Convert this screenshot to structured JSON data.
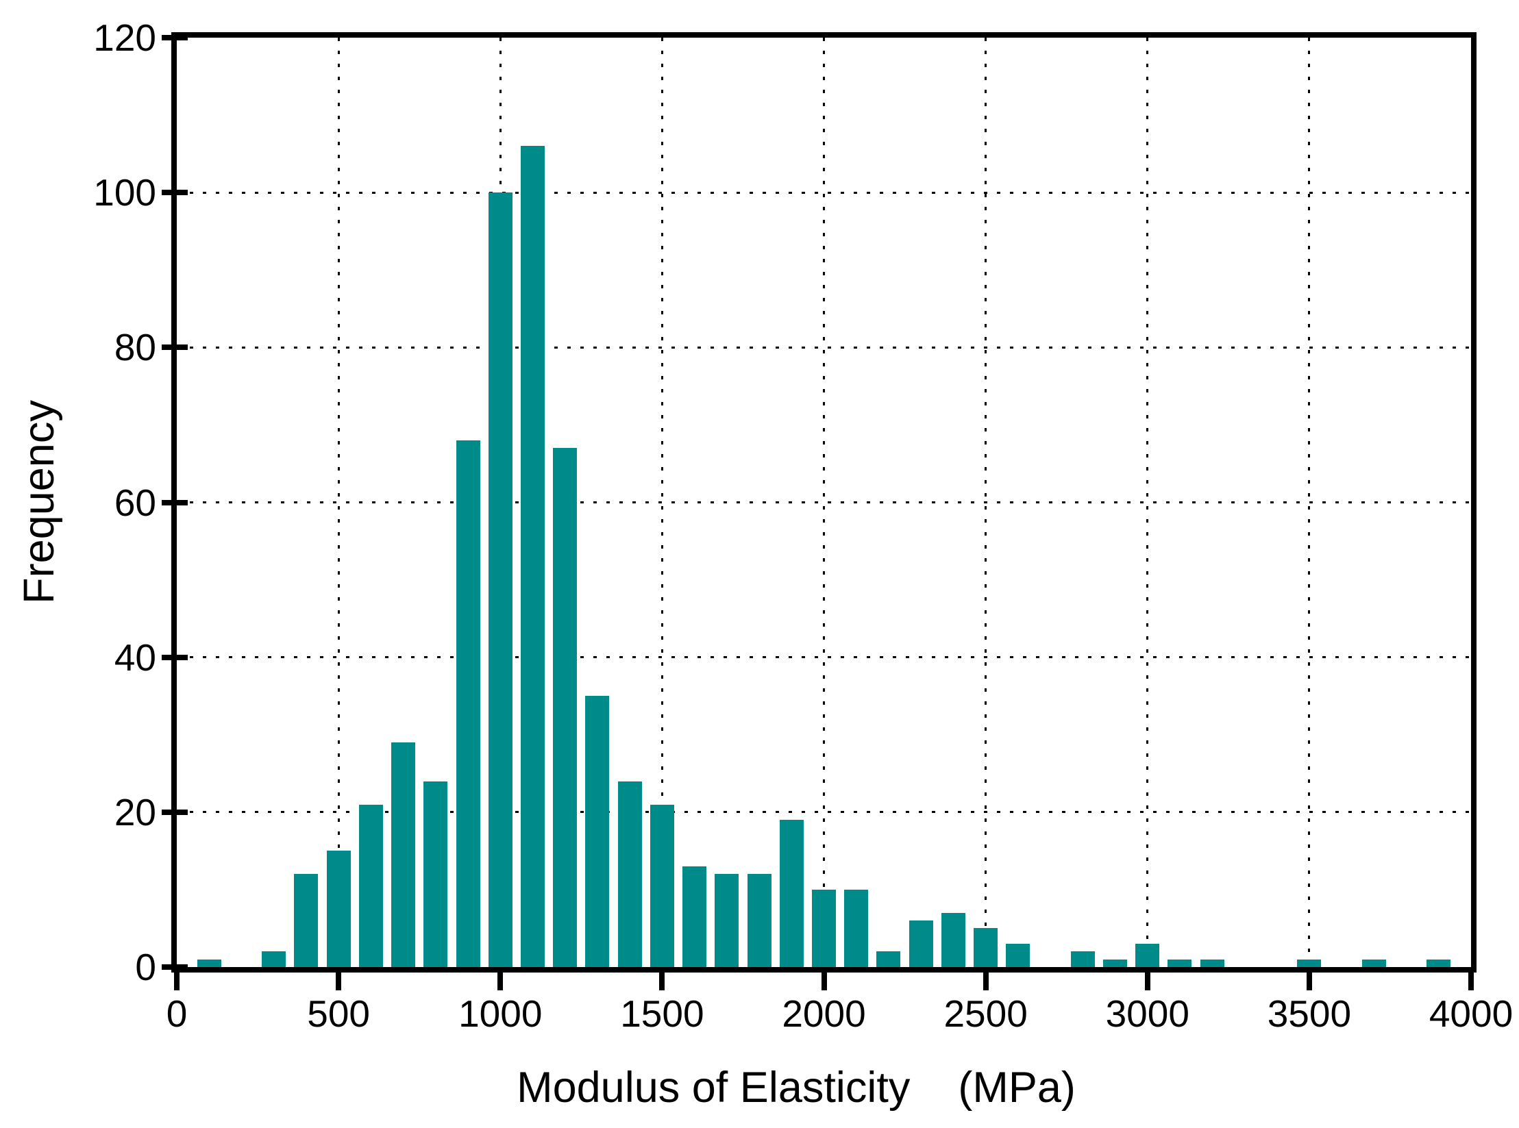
{
  "figure": {
    "background": "#ffffff",
    "axis_color": "#000000"
  },
  "chart_data": {
    "type": "bar",
    "title": "",
    "xlabel": "Modulus of Elasticity    (MPa)",
    "ylabel": "Frequency",
    "xlim": [
      0,
      4000
    ],
    "ylim": [
      0,
      120
    ],
    "x_ticks": [
      0,
      500,
      1000,
      1500,
      2000,
      2500,
      3000,
      3500,
      4000
    ],
    "y_ticks": [
      0,
      20,
      40,
      60,
      80,
      100,
      120
    ],
    "grid": {
      "style": "dotted",
      "x_interval": 500,
      "y_interval": 20,
      "on": true
    },
    "legend": "none",
    "bar_color": "#008B8B",
    "bin_width_mpa": 100,
    "bars": [
      {
        "x": 100,
        "frequency": 1
      },
      {
        "x": 300,
        "frequency": 2
      },
      {
        "x": 400,
        "frequency": 12
      },
      {
        "x": 500,
        "frequency": 15
      },
      {
        "x": 600,
        "frequency": 21
      },
      {
        "x": 700,
        "frequency": 29
      },
      {
        "x": 800,
        "frequency": 24
      },
      {
        "x": 900,
        "frequency": 68
      },
      {
        "x": 1000,
        "frequency": 100
      },
      {
        "x": 1100,
        "frequency": 106
      },
      {
        "x": 1200,
        "frequency": 67
      },
      {
        "x": 1300,
        "frequency": 35
      },
      {
        "x": 1400,
        "frequency": 24
      },
      {
        "x": 1500,
        "frequency": 21
      },
      {
        "x": 1600,
        "frequency": 13
      },
      {
        "x": 1700,
        "frequency": 12
      },
      {
        "x": 1800,
        "frequency": 12
      },
      {
        "x": 1900,
        "frequency": 19
      },
      {
        "x": 2000,
        "frequency": 10
      },
      {
        "x": 2100,
        "frequency": 10
      },
      {
        "x": 2200,
        "frequency": 2
      },
      {
        "x": 2300,
        "frequency": 6
      },
      {
        "x": 2400,
        "frequency": 7
      },
      {
        "x": 2500,
        "frequency": 5
      },
      {
        "x": 2600,
        "frequency": 3
      },
      {
        "x": 2800,
        "frequency": 2
      },
      {
        "x": 2900,
        "frequency": 1
      },
      {
        "x": 3000,
        "frequency": 3
      },
      {
        "x": 3100,
        "frequency": 1
      },
      {
        "x": 3200,
        "frequency": 1
      },
      {
        "x": 3500,
        "frequency": 1
      },
      {
        "x": 3700,
        "frequency": 1
      },
      {
        "x": 3900,
        "frequency": 1
      }
    ]
  }
}
